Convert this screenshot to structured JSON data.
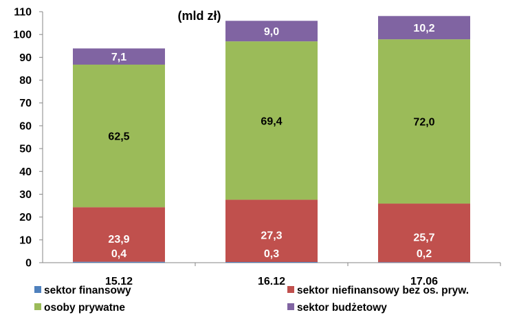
{
  "chart_data": {
    "type": "bar",
    "stacked": true,
    "unit_label": "(mld zł)",
    "categories": [
      "15.12",
      "16.12",
      "17.06"
    ],
    "ylim": [
      0,
      110
    ],
    "yticks": [
      "0",
      "10",
      "20",
      "30",
      "40",
      "50",
      "60",
      "70",
      "80",
      "90",
      "100",
      "110"
    ],
    "series": [
      {
        "name": "sektor finansowy",
        "color": "#4f81bd",
        "values": [
          0.4,
          0.3,
          0.2
        ],
        "labels": [
          "0,4",
          "0,3",
          "0,2"
        ],
        "label_color": "#ffffff"
      },
      {
        "name": "sektor niefinansowy bez os. pryw.",
        "color": "#c0504d",
        "values": [
          23.9,
          27.3,
          25.7
        ],
        "labels": [
          "23,9",
          "27,3",
          "25,7"
        ],
        "label_color": "#ffffff"
      },
      {
        "name": "osoby prywatne",
        "color": "#9bbb59",
        "values": [
          62.5,
          69.4,
          72.0
        ],
        "labels": [
          "62,5",
          "69,4",
          "72,0"
        ],
        "label_color": "#000000"
      },
      {
        "name": "sektor budżetowy",
        "color": "#8064a2",
        "values": [
          7.1,
          9.0,
          10.2
        ],
        "labels": [
          "7,1",
          "9,0",
          "10,2"
        ],
        "label_color": "#ffffff"
      }
    ],
    "grid": false,
    "legend_position": "bottom"
  }
}
